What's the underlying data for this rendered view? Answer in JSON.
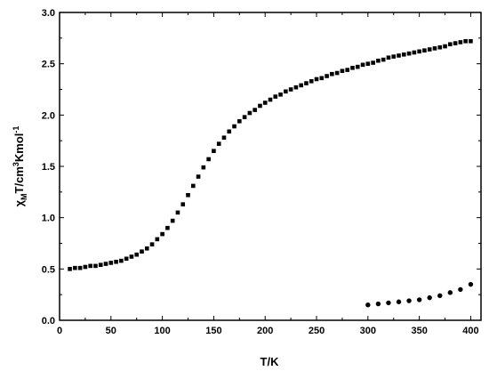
{
  "chart_data": {
    "type": "scatter",
    "title": "",
    "xlabel": "T/K",
    "ylabel": {
      "prefix": "χ",
      "subscript": "M",
      "middle": "T/cm",
      "superscript": "3",
      "after": "Kmol",
      "exponent": "-1"
    },
    "xlim": [
      0,
      410
    ],
    "ylim": [
      0,
      3.0
    ],
    "xticks": [
      0,
      50,
      100,
      150,
      200,
      250,
      300,
      350,
      400
    ],
    "xtick_labels": [
      "0",
      "50",
      "100",
      "150",
      "200",
      "250",
      "300",
      "350",
      "400"
    ],
    "yticks": [
      0,
      0.5,
      1.0,
      1.5,
      2.0,
      2.5,
      3.0
    ],
    "ytick_labels": [
      "0.0",
      "0.5",
      "1.0",
      "1.5",
      "2.0",
      "2.5",
      "3.0"
    ],
    "grid": false,
    "legend": false,
    "series": [
      {
        "marker": "square",
        "color": "#000000",
        "x": [
          10,
          15,
          20,
          25,
          30,
          35,
          40,
          45,
          50,
          55,
          60,
          65,
          70,
          75,
          80,
          85,
          90,
          95,
          100,
          105,
          110,
          115,
          120,
          125,
          130,
          135,
          140,
          145,
          150,
          155,
          160,
          165,
          170,
          175,
          180,
          185,
          190,
          195,
          200,
          205,
          210,
          215,
          220,
          225,
          230,
          235,
          240,
          245,
          250,
          255,
          260,
          265,
          270,
          275,
          280,
          285,
          290,
          295,
          300,
          305,
          310,
          315,
          320,
          325,
          330,
          335,
          340,
          345,
          350,
          355,
          360,
          365,
          370,
          375,
          380,
          385,
          390,
          395,
          400
        ],
        "y": [
          0.5,
          0.51,
          0.51,
          0.52,
          0.53,
          0.53,
          0.54,
          0.55,
          0.56,
          0.57,
          0.58,
          0.6,
          0.62,
          0.64,
          0.67,
          0.7,
          0.74,
          0.79,
          0.84,
          0.9,
          0.97,
          1.05,
          1.13,
          1.22,
          1.31,
          1.4,
          1.49,
          1.57,
          1.65,
          1.72,
          1.78,
          1.84,
          1.89,
          1.94,
          1.98,
          2.02,
          2.05,
          2.09,
          2.12,
          2.15,
          2.18,
          2.2,
          2.23,
          2.25,
          2.27,
          2.29,
          2.31,
          2.33,
          2.35,
          2.36,
          2.38,
          2.4,
          2.41,
          2.43,
          2.44,
          2.46,
          2.47,
          2.49,
          2.5,
          2.51,
          2.53,
          2.54,
          2.56,
          2.57,
          2.58,
          2.59,
          2.6,
          2.61,
          2.62,
          2.63,
          2.64,
          2.65,
          2.66,
          2.67,
          2.69,
          2.7,
          2.71,
          2.72,
          2.72
        ]
      },
      {
        "marker": "circle",
        "color": "#000000",
        "x": [
          300,
          310,
          320,
          330,
          340,
          350,
          360,
          370,
          380,
          390,
          400
        ],
        "y": [
          0.15,
          0.16,
          0.17,
          0.18,
          0.19,
          0.2,
          0.22,
          0.24,
          0.27,
          0.3,
          0.35
        ]
      }
    ]
  }
}
